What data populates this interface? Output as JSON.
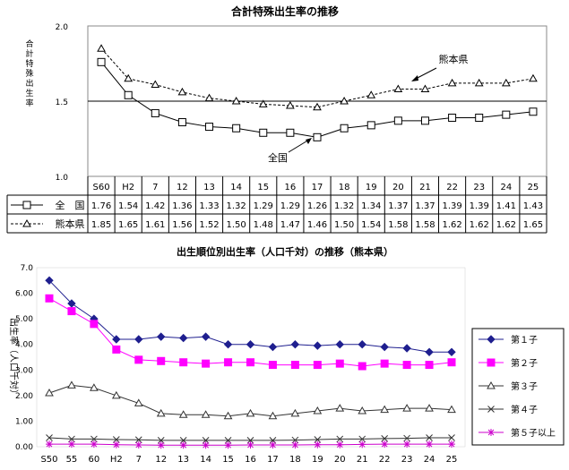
{
  "chart_data": [
    {
      "type": "line",
      "title": "合計特殊出生率の推移",
      "ylabel": "合計特殊出生率",
      "ylim": [
        1.0,
        2.0
      ],
      "yticks": [
        "2.0",
        "1.5",
        "1.0"
      ],
      "categories": [
        "S60",
        "H2",
        "7",
        "12",
        "13",
        "14",
        "15",
        "16",
        "17",
        "18",
        "19",
        "20",
        "21",
        "22",
        "23",
        "24",
        "25"
      ],
      "series": [
        {
          "name": "全　国",
          "marker": "square",
          "line": "solid",
          "color": "#000000",
          "values": [
            1.76,
            1.54,
            1.42,
            1.36,
            1.33,
            1.32,
            1.29,
            1.29,
            1.26,
            1.32,
            1.34,
            1.37,
            1.37,
            1.39,
            1.39,
            1.41,
            1.43
          ],
          "labels": [
            "1.76",
            "1.54",
            "1.42",
            "1.36",
            "1.33",
            "1.32",
            "1.29",
            "1.29",
            "1.26",
            "1.32",
            "1.34",
            "1.37",
            "1.37",
            "1.39",
            "1.39",
            "1.41",
            "1.43"
          ]
        },
        {
          "name": "熊本県",
          "marker": "triangle",
          "line": "dashed",
          "color": "#000000",
          "values": [
            1.85,
            1.65,
            1.61,
            1.56,
            1.52,
            1.5,
            1.48,
            1.47,
            1.46,
            1.5,
            1.54,
            1.58,
            1.58,
            1.62,
            1.62,
            1.62,
            1.65
          ],
          "labels": [
            "1.85",
            "1.65",
            "1.61",
            "1.56",
            "1.52",
            "1.50",
            "1.48",
            "1.47",
            "1.46",
            "1.50",
            "1.54",
            "1.58",
            "1.58",
            "1.62",
            "1.62",
            "1.62",
            "1.65"
          ]
        }
      ],
      "annotations": [
        "熊本県",
        "全国"
      ],
      "table_header": [
        "全　国",
        "熊本県"
      ]
    },
    {
      "type": "line",
      "title": "出生順位別出生率（人口千対）の推移（熊本県）",
      "ylabel": "出生率（人口千対）",
      "ylim": [
        0,
        7.0
      ],
      "yticks": [
        "7.0",
        "6.00",
        "5.00",
        "4.00",
        "3.00",
        "2.00",
        "1.00",
        "0.00"
      ],
      "categories": [
        "S50",
        "55",
        "60",
        "H2",
        "7",
        "12",
        "13",
        "14",
        "15",
        "16",
        "17",
        "18",
        "19",
        "20",
        "21",
        "22",
        "23",
        "24",
        "25"
      ],
      "legend_position": "right",
      "series": [
        {
          "name": "第１子",
          "marker": "diamond",
          "color": "#1f1f8f",
          "values": [
            6.5,
            5.6,
            5.0,
            4.2,
            4.2,
            4.3,
            4.25,
            4.3,
            4.0,
            4.0,
            3.9,
            4.0,
            3.95,
            4.0,
            4.0,
            3.9,
            3.85,
            3.7,
            3.7
          ]
        },
        {
          "name": "第２子",
          "marker": "square",
          "color": "#ff00ff",
          "values": [
            5.8,
            5.3,
            4.8,
            3.8,
            3.4,
            3.35,
            3.3,
            3.25,
            3.3,
            3.3,
            3.2,
            3.2,
            3.2,
            3.25,
            3.15,
            3.25,
            3.2,
            3.2,
            3.3
          ]
        },
        {
          "name": "第３子",
          "marker": "triangle",
          "color": "#333333",
          "values": [
            2.1,
            2.4,
            2.3,
            2.0,
            1.7,
            1.3,
            1.25,
            1.25,
            1.2,
            1.3,
            1.2,
            1.3,
            1.4,
            1.5,
            1.4,
            1.45,
            1.5,
            1.5,
            1.45
          ]
        },
        {
          "name": "第４子",
          "marker": "x",
          "color": "#333333",
          "values": [
            0.35,
            0.3,
            0.3,
            0.28,
            0.27,
            0.25,
            0.25,
            0.25,
            0.25,
            0.25,
            0.25,
            0.26,
            0.28,
            0.3,
            0.3,
            0.32,
            0.33,
            0.35,
            0.35
          ]
        },
        {
          "name": "第５子以上",
          "marker": "star",
          "color": "#cc00cc",
          "values": [
            0.1,
            0.1,
            0.1,
            0.08,
            0.07,
            0.06,
            0.06,
            0.06,
            0.06,
            0.07,
            0.07,
            0.07,
            0.08,
            0.08,
            0.09,
            0.1,
            0.1,
            0.1,
            0.1
          ]
        }
      ]
    }
  ]
}
